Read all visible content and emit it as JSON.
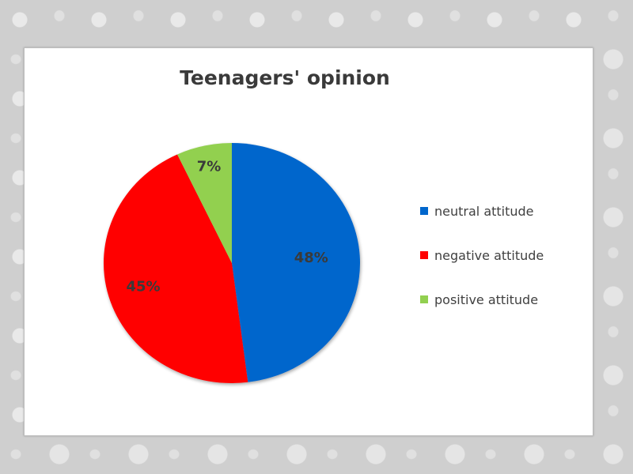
{
  "chart_data": {
    "type": "pie",
    "title": "Teenagers' opinion",
    "categories": [
      "neutral attitude",
      "negative attitude",
      "positive attitude"
    ],
    "values": [
      48,
      45,
      7
    ],
    "data_labels": [
      "48%",
      "45%",
      "7%"
    ],
    "colors": [
      "#0066CC",
      "#FF0000",
      "#92D050"
    ],
    "legend_position": "right"
  }
}
